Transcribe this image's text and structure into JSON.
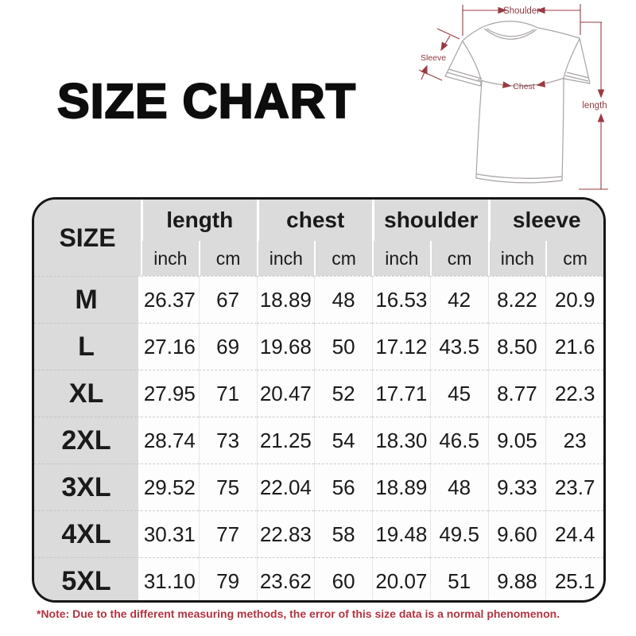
{
  "page": {
    "title": "SIZE CHART",
    "note": "*Note: Due to the different measuring methods, the error of this size data is a normal phenomenon."
  },
  "colors": {
    "header_bg": "#dbdbdb",
    "table_border": "#161616",
    "note_red": "#b23440",
    "diagram_red": "#9a3b41",
    "shirt_outline_gray": "#a8a3a5"
  },
  "diagram": {
    "labels": {
      "shoulder": "Shoulder",
      "sleeve": "Sleeve",
      "chest": "Chest",
      "length": "length"
    }
  },
  "table": {
    "size_header": "SIZE",
    "groups": [
      {
        "label": "length"
      },
      {
        "label": "chest"
      },
      {
        "label": "shoulder"
      },
      {
        "label": "sleeve"
      }
    ],
    "unit_headers": [
      "inch",
      "cm",
      "inch",
      "cm",
      "inch",
      "cm",
      "inch",
      "cm"
    ],
    "rows": [
      {
        "size": "M",
        "values": [
          "26.37",
          "67",
          "18.89",
          "48",
          "16.53",
          "42",
          "8.22",
          "20.9"
        ]
      },
      {
        "size": "L",
        "values": [
          "27.16",
          "69",
          "19.68",
          "50",
          "17.12",
          "43.5",
          "8.50",
          "21.6"
        ]
      },
      {
        "size": "XL",
        "values": [
          "27.95",
          "71",
          "20.47",
          "52",
          "17.71",
          "45",
          "8.77",
          "22.3"
        ]
      },
      {
        "size": "2XL",
        "values": [
          "28.74",
          "73",
          "21.25",
          "54",
          "18.30",
          "46.5",
          "9.05",
          "23"
        ]
      },
      {
        "size": "3XL",
        "values": [
          "29.52",
          "75",
          "22.04",
          "56",
          "18.89",
          "48",
          "9.33",
          "23.7"
        ]
      },
      {
        "size": "4XL",
        "values": [
          "30.31",
          "77",
          "22.83",
          "58",
          "19.48",
          "49.5",
          "9.60",
          "24.4"
        ]
      },
      {
        "size": "5XL",
        "values": [
          "31.10",
          "79",
          "23.62",
          "60",
          "20.07",
          "51",
          "9.88",
          "25.1"
        ]
      }
    ]
  },
  "chart_data": {
    "type": "table",
    "title": "SIZE CHART",
    "columns": [
      "SIZE",
      "length inch",
      "length cm",
      "chest inch",
      "chest cm",
      "shoulder inch",
      "shoulder cm",
      "sleeve inch",
      "sleeve cm"
    ],
    "rows": [
      [
        "M",
        26.37,
        67,
        18.89,
        48,
        16.53,
        42,
        8.22,
        20.9
      ],
      [
        "L",
        27.16,
        69,
        19.68,
        50,
        17.12,
        43.5,
        8.5,
        21.6
      ],
      [
        "XL",
        27.95,
        71,
        20.47,
        52,
        17.71,
        45,
        8.77,
        22.3
      ],
      [
        "2XL",
        28.74,
        73,
        21.25,
        54,
        18.3,
        46.5,
        9.05,
        23
      ],
      [
        "3XL",
        29.52,
        75,
        22.04,
        56,
        18.89,
        48,
        9.33,
        23.7
      ],
      [
        "4XL",
        30.31,
        77,
        22.83,
        58,
        19.48,
        49.5,
        9.6,
        24.4
      ],
      [
        "5XL",
        31.1,
        79,
        23.62,
        60,
        20.07,
        51,
        9.88,
        25.1
      ]
    ],
    "note": "*Note: Due to the different measuring methods, the error of this size data is a normal phenomenon."
  }
}
